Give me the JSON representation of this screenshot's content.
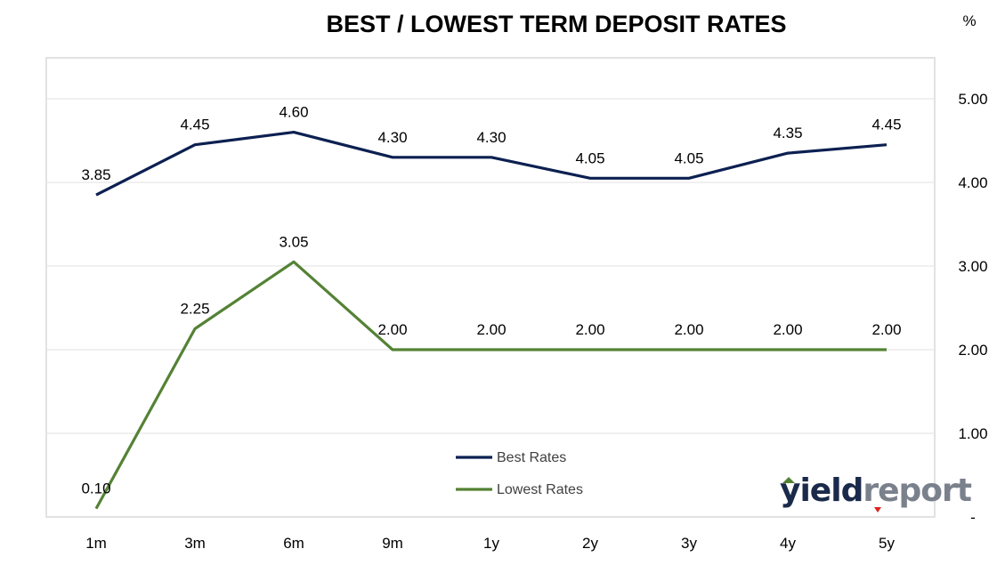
{
  "chart_data": {
    "type": "line",
    "title": "BEST / LOWEST TERM DEPOSIT RATES",
    "unit": "%",
    "categories": [
      "1m",
      "3m",
      "6m",
      "9m",
      "1y",
      "2y",
      "3y",
      "4y",
      "5y"
    ],
    "series": [
      {
        "name": "Best Rates",
        "color": "#0c2051",
        "values": [
          3.85,
          4.45,
          4.6,
          4.3,
          4.3,
          4.05,
          4.05,
          4.35,
          4.45
        ]
      },
      {
        "name": "Lowest Rates",
        "color": "#548235",
        "values": [
          0.1,
          2.25,
          3.05,
          2.0,
          2.0,
          2.0,
          2.0,
          2.0,
          2.0
        ]
      }
    ],
    "y_ticks": [
      "-",
      "1.00",
      "2.00",
      "3.00",
      "4.00",
      "5.00"
    ],
    "ylim": [
      0,
      5.5
    ],
    "grid": true,
    "legend_position": "bottom-center",
    "y_axis_side": "right"
  },
  "branding": {
    "logo_part1": "yield",
    "logo_part2": "report"
  }
}
